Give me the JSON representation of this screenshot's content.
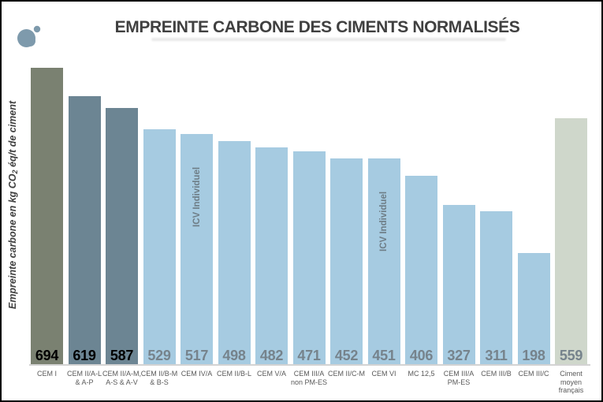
{
  "header": {
    "title": "EMPREINTE CARBONE DES CIMENTS NORMALISÉS",
    "logo_color": "#7E9AAC"
  },
  "y_axis": {
    "label_prefix": "Empreinte carbone en kg CO",
    "label_sub": "2",
    "label_suffix": " éq/t de ciment"
  },
  "colors": {
    "dark_olive": "#7A8171",
    "slate_blue": "#6C8593",
    "light_blue": "#A6CBE1",
    "sage_green": "#CFD7CB",
    "value_black": "#000000",
    "value_gray": "#76838C",
    "overlay_text": "#6E7D86",
    "category_label": "#595959",
    "baseline": "#D3D3D3",
    "title_text": "#404040"
  },
  "chart_data": {
    "type": "bar",
    "title": "EMPREINTE CARBONE DES CIMENTS NORMALISÉS",
    "ylabel": "Empreinte carbone en kg CO2 éq/t de ciment",
    "xlabel": "",
    "grid": false,
    "legend": false,
    "value_labels_position": "inside-base",
    "categories": [
      "CEM I",
      "CEM II/A-L & A-P",
      "CEM II/A-M, A-S & A-V",
      "CEM II/B-M & B-S",
      "CEM IV/A",
      "CEM II/B-L",
      "CEM V/A",
      "CEM III/A non PM-ES",
      "CEM II/C-M",
      "CEM VI",
      "MC 12,5",
      "CEM III/A PM-ES",
      "CEM III/B",
      "CEM III/C",
      "Ciment moyen français"
    ],
    "values": [
      694,
      619,
      587,
      529,
      517,
      498,
      482,
      471,
      452,
      451,
      406,
      327,
      311,
      198,
      559
    ],
    "unit": "kg CO2 éq/t de ciment",
    "bars": [
      {
        "label_lines": [
          "CEM I"
        ],
        "value": 694,
        "color_key": "dark_olive",
        "value_color_key": "value_black"
      },
      {
        "label_lines": [
          "CEM II/A-L",
          "& A-P"
        ],
        "value": 619,
        "color_key": "slate_blue",
        "value_color_key": "value_black"
      },
      {
        "label_lines": [
          "CEM II/A-M,",
          "A-S & A-V"
        ],
        "value": 587,
        "color_key": "slate_blue",
        "value_color_key": "value_black"
      },
      {
        "label_lines": [
          "CEM II/B-M",
          "& B-S"
        ],
        "value": 529,
        "color_key": "light_blue",
        "value_color_key": "value_gray"
      },
      {
        "label_lines": [
          "CEM IV/A"
        ],
        "value": 517,
        "color_key": "light_blue",
        "value_color_key": "value_gray",
        "overlay": "ICV Individuel"
      },
      {
        "label_lines": [
          "CEM II/B-L"
        ],
        "value": 498,
        "color_key": "light_blue",
        "value_color_key": "value_gray"
      },
      {
        "label_lines": [
          "CEM V/A"
        ],
        "value": 482,
        "color_key": "light_blue",
        "value_color_key": "value_gray"
      },
      {
        "label_lines": [
          "CEM III/A",
          "non PM-ES"
        ],
        "value": 471,
        "color_key": "light_blue",
        "value_color_key": "value_gray"
      },
      {
        "label_lines": [
          "CEM II/C-M"
        ],
        "value": 452,
        "color_key": "light_blue",
        "value_color_key": "value_gray"
      },
      {
        "label_lines": [
          "CEM VI"
        ],
        "value": 451,
        "color_key": "light_blue",
        "value_color_key": "value_gray",
        "overlay": "ICV Individuel"
      },
      {
        "label_lines": [
          "MC 12,5"
        ],
        "value": 406,
        "color_key": "light_blue",
        "value_color_key": "value_gray"
      },
      {
        "label_lines": [
          "CEM III/A",
          "PM-ES"
        ],
        "value": 327,
        "color_key": "light_blue",
        "value_color_key": "value_gray"
      },
      {
        "label_lines": [
          "CEM III/B"
        ],
        "value": 311,
        "color_key": "light_blue",
        "value_color_key": "value_gray"
      },
      {
        "label_lines": [
          "CEM III/C"
        ],
        "value": 198,
        "color_key": "light_blue",
        "value_color_key": "value_gray"
      },
      {
        "label_lines": [
          "Ciment",
          "moyen",
          "français"
        ],
        "value": 559,
        "color_key": "sage_green",
        "value_color_key": "value_gray"
      }
    ]
  }
}
